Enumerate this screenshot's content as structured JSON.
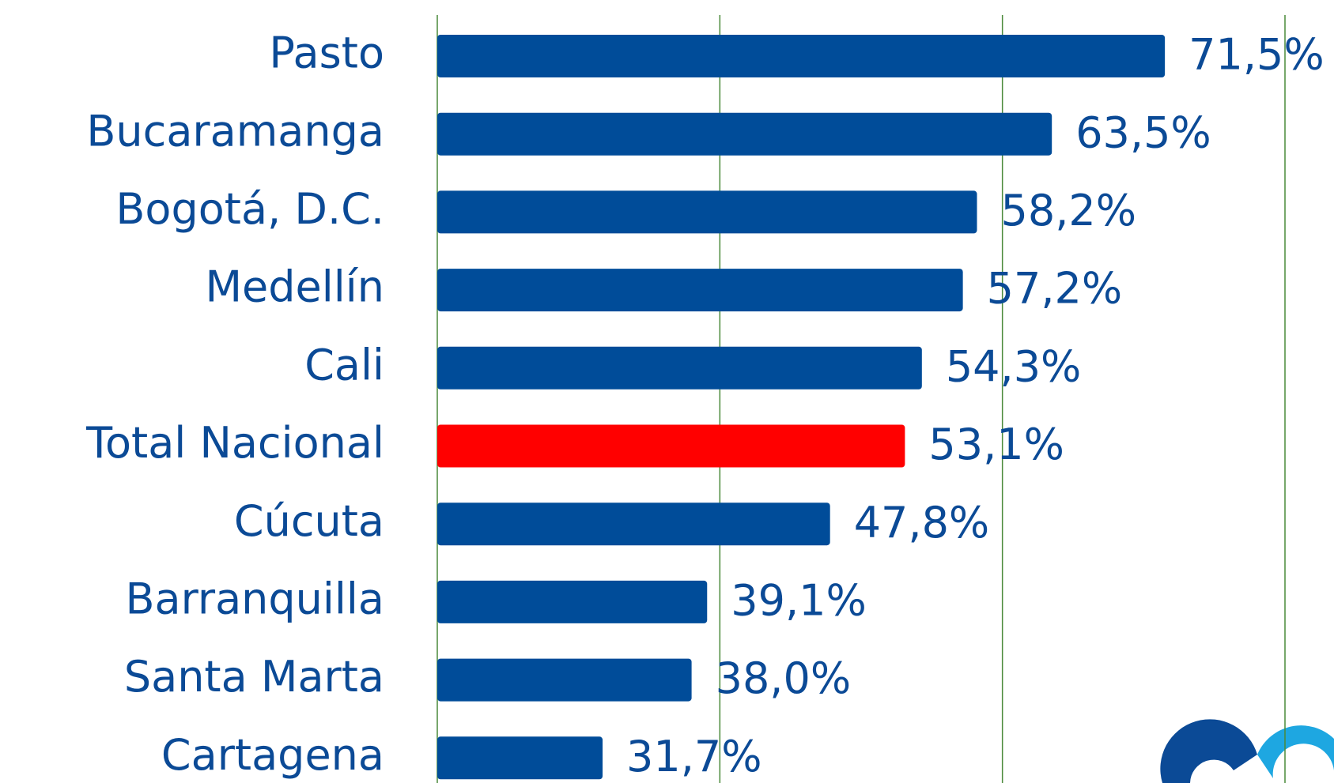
{
  "chart_data": {
    "type": "hbar",
    "categories": [
      "Pasto",
      "Bucaramanga",
      "Bogotá, D.C.",
      "Medellín",
      "Cali",
      "Total Nacional",
      "Cúcuta",
      "Barranquilla",
      "Santa Marta",
      "Cartagena"
    ],
    "values": [
      71.5,
      63.5,
      58.2,
      57.2,
      54.3,
      53.1,
      47.8,
      39.1,
      38.0,
      31.7
    ],
    "value_labels": [
      "71,5%",
      "63,5%",
      "58,2%",
      "57,2%",
      "54,3%",
      "53,1%",
      "47,8%",
      "39,1%",
      "38,0%",
      "31,7%"
    ],
    "colors": [
      "#004c99",
      "#004c99",
      "#004c99",
      "#004c99",
      "#004c99",
      "#ff0000",
      "#004c99",
      "#004c99",
      "#004c99",
      "#004c99"
    ],
    "xlim": [
      20,
      80
    ],
    "xticks": [
      20,
      40,
      60,
      80
    ],
    "grid": true
  }
}
